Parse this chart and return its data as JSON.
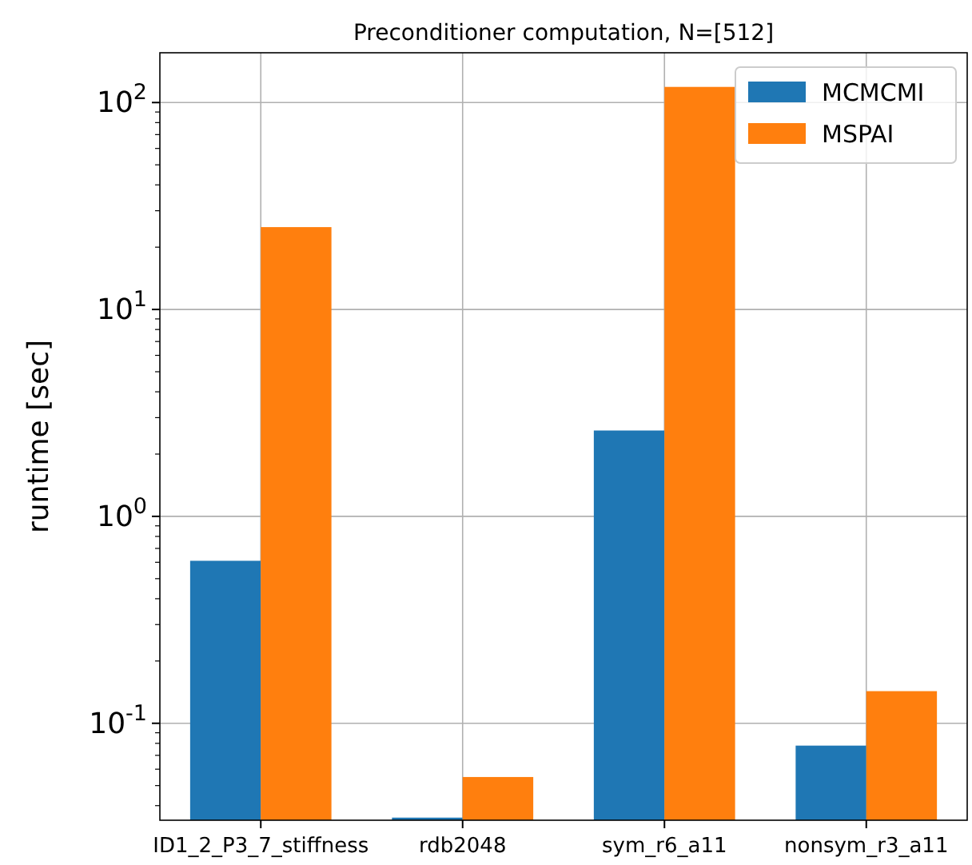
{
  "chart_data": {
    "type": "bar",
    "title": "Preconditioner computation, N=[512]",
    "ylabel": "runtime [sec]",
    "categories": [
      "ID1_2_P3_7_stiffness",
      "rdb2048",
      "sym_r6_a11",
      "nonsym_r3_a11"
    ],
    "series": [
      {
        "name": "MCMCMI",
        "color": "#1f77b4",
        "values": [
          0.61,
          0.035,
          2.6,
          0.078
        ]
      },
      {
        "name": "MSPAI",
        "color": "#ff7f0e",
        "values": [
          25,
          0.055,
          119,
          0.143
        ]
      }
    ],
    "log": true,
    "ylim": [
      0.034,
      174
    ],
    "yticks": [
      {
        "value": 0.1,
        "label": "10$^{-1}$"
      },
      {
        "value": 1,
        "label": "10$^{0}$"
      },
      {
        "value": 10,
        "label": "10$^{1}$"
      },
      {
        "value": 100,
        "label": "10$^{2}$"
      }
    ],
    "grid": true,
    "legend": "top right"
  }
}
